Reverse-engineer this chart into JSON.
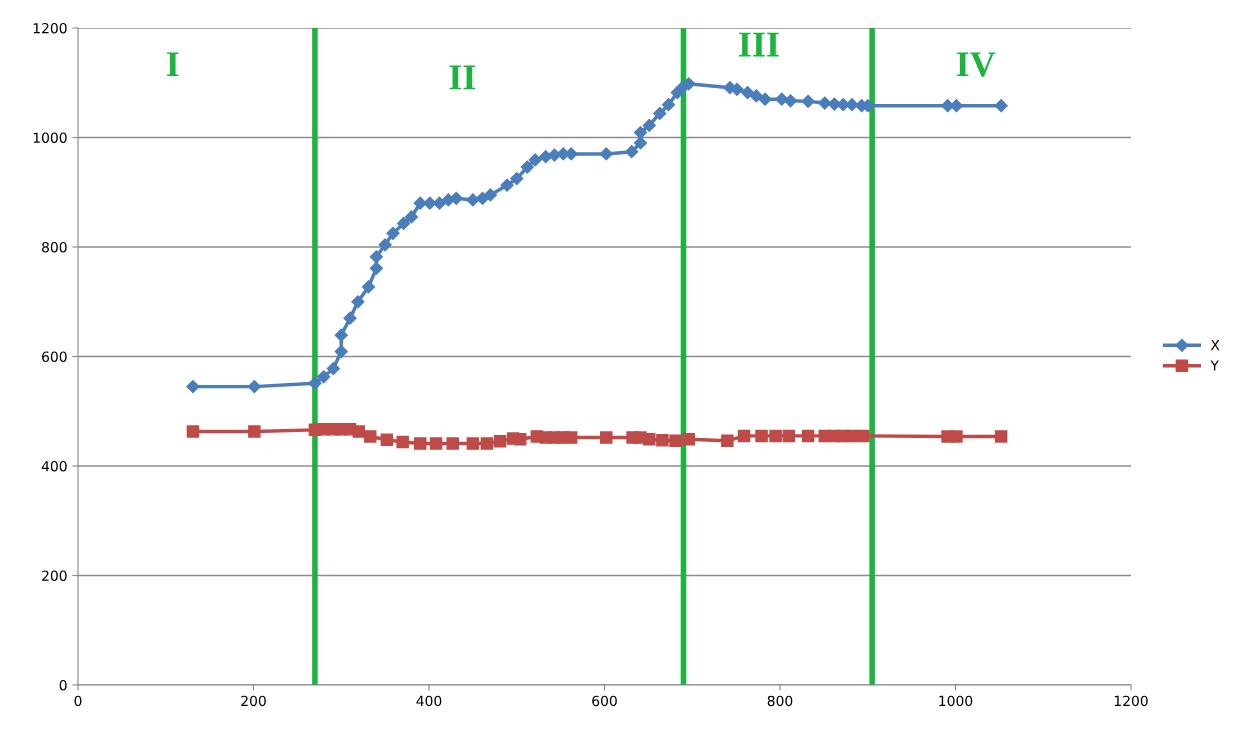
{
  "chart_data": {
    "type": "line",
    "xlim": [
      0,
      1200
    ],
    "xticks": [
      0,
      200,
      400,
      600,
      800,
      1000,
      1200
    ],
    "ylim": [
      0,
      1200
    ],
    "yticks": [
      0,
      200,
      400,
      600,
      800,
      1000,
      1200
    ],
    "grid": "y",
    "legend": "right",
    "series": [
      {
        "name": "X",
        "color": "#4a7ebb",
        "marker": "diamond",
        "x": [
          131,
          201,
          270,
          280,
          291,
          300,
          300,
          310,
          319,
          331,
          340,
          340,
          350,
          359,
          371,
          380,
          390,
          401,
          412,
          422,
          431,
          450,
          461,
          470,
          489,
          500,
          512,
          521,
          533,
          543,
          553,
          562,
          602,
          631,
          641,
          641,
          651,
          663,
          673,
          683,
          688,
          696,
          743,
          751,
          763,
          773,
          783,
          802,
          812,
          832,
          851,
          862,
          872,
          882,
          893,
          900,
          991,
          1001,
          1052
        ],
        "values": [
          545,
          545,
          551,
          563,
          578,
          609,
          639,
          670,
          700,
          727,
          761,
          782,
          804,
          825,
          843,
          855,
          880,
          880,
          880,
          886,
          889,
          886,
          889,
          895,
          913,
          925,
          946,
          959,
          965,
          968,
          970,
          970,
          970,
          974,
          990,
          1009,
          1022,
          1044,
          1060,
          1082,
          1090,
          1098,
          1091,
          1088,
          1082,
          1076,
          1070,
          1070,
          1067,
          1066,
          1063,
          1061,
          1060,
          1060,
          1058,
          1058,
          1058,
          1058,
          1058
        ]
      },
      {
        "name": "Y",
        "color": "#be4b48",
        "marker": "square",
        "x": [
          131,
          201,
          270,
          280,
          291,
          300,
          310,
          320,
          333,
          352,
          370,
          390,
          408,
          427,
          450,
          466,
          481,
          496,
          504,
          523,
          533,
          543,
          553,
          562,
          602,
          632,
          641,
          651,
          666,
          681,
          696,
          740,
          759,
          779,
          795,
          810,
          832,
          851,
          862,
          872,
          882,
          895,
          991,
          1001,
          1052
        ],
        "values": [
          463,
          463,
          466,
          467,
          467,
          467,
          467,
          463,
          454,
          448,
          444,
          441,
          441,
          441,
          441,
          441,
          445,
          450,
          449,
          454,
          452,
          452,
          452,
          452,
          452,
          452,
          452,
          449,
          447,
          446,
          449,
          446,
          455,
          455,
          455,
          455,
          455,
          455,
          455,
          455,
          455,
          455,
          454,
          454,
          454
        ]
      }
    ],
    "ref_lines": [
      {
        "axis": "x",
        "value": 270,
        "color": "#1db33f"
      },
      {
        "axis": "x",
        "value": 690,
        "color": "#1db33f"
      },
      {
        "axis": "x",
        "value": 905,
        "color": "#1db33f"
      }
    ],
    "annotations": [
      "I",
      "II",
      "III",
      "IV"
    ]
  }
}
